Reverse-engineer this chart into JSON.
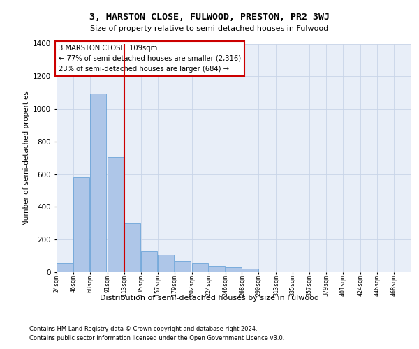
{
  "title": "3, MARSTON CLOSE, FULWOOD, PRESTON, PR2 3WJ",
  "subtitle": "Size of property relative to semi-detached houses in Fulwood",
  "xlabel": "Distribution of semi-detached houses by size in Fulwood",
  "ylabel": "Number of semi-detached properties",
  "footer1": "Contains HM Land Registry data © Crown copyright and database right 2024.",
  "footer2": "Contains public sector information licensed under the Open Government Licence v3.0.",
  "property_label": "3 MARSTON CLOSE: 109sqm",
  "annotation_line1": "← 77% of semi-detached houses are smaller (2,316)",
  "annotation_line2": "23% of semi-detached houses are larger (684) →",
  "bins": [
    24,
    46,
    68,
    91,
    113,
    135,
    157,
    179,
    202,
    224,
    246,
    268,
    290,
    313,
    335,
    357,
    379,
    401,
    424,
    446,
    468
  ],
  "counts": [
    57,
    583,
    1096,
    706,
    300,
    130,
    108,
    70,
    55,
    40,
    30,
    20,
    0,
    0,
    1,
    0,
    0,
    0,
    0,
    0
  ],
  "bar_color": "#aec6e8",
  "bar_edge_color": "#5b9bd5",
  "vline_color": "#cc0000",
  "vline_x": 113,
  "grid_color": "#c8d4e8",
  "bg_color": "#e8eef8",
  "ylim_max": 1400,
  "yticks": [
    0,
    200,
    400,
    600,
    800,
    1000,
    1200,
    1400
  ]
}
